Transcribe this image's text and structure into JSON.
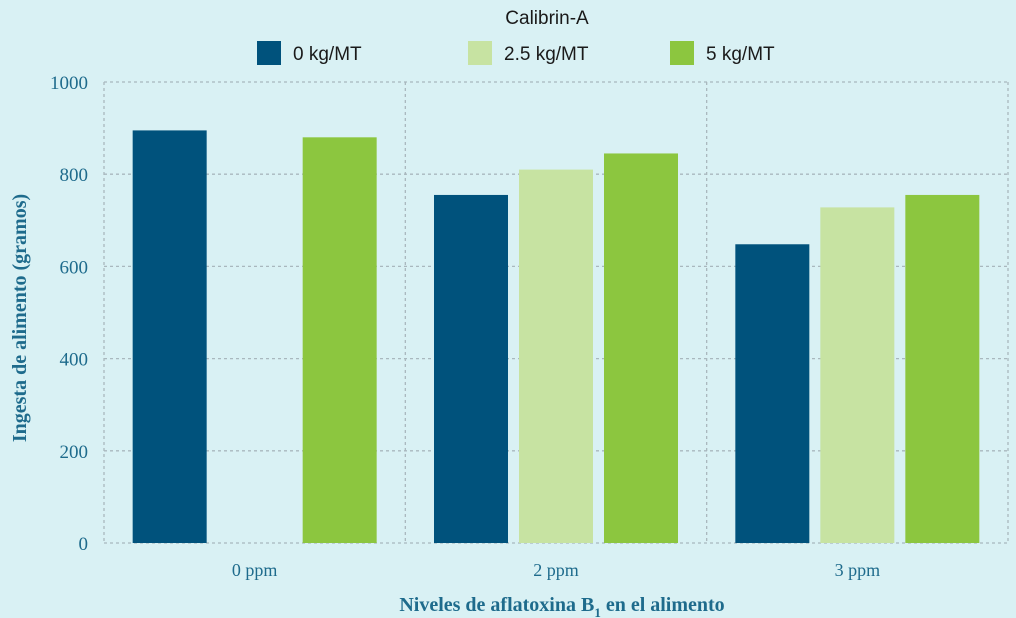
{
  "chart_data": {
    "type": "bar",
    "legend_title": "Calibrin-A",
    "legend_position": "top",
    "categories": [
      "0 ppm",
      "2 ppm",
      "3 ppm"
    ],
    "series": [
      {
        "name": "0 kg/MT",
        "color": "#00527c",
        "values": [
          895,
          755,
          648
        ]
      },
      {
        "name": "2.5 kg/MT",
        "color": "#c7e3a2",
        "values": [
          null,
          810,
          728
        ]
      },
      {
        "name": "5 kg/MT",
        "color": "#8cc63f",
        "values": [
          880,
          845,
          755
        ]
      }
    ],
    "xlabel_parts": [
      "Niveles de aflatoxina B",
      "1",
      " en el alimento"
    ],
    "ylabel": "Ingesta de alimento (gramos)",
    "ylim": [
      0,
      1000
    ],
    "yticks": [
      "0",
      "200",
      "400",
      "600",
      "800",
      "1000"
    ],
    "grid": true
  }
}
